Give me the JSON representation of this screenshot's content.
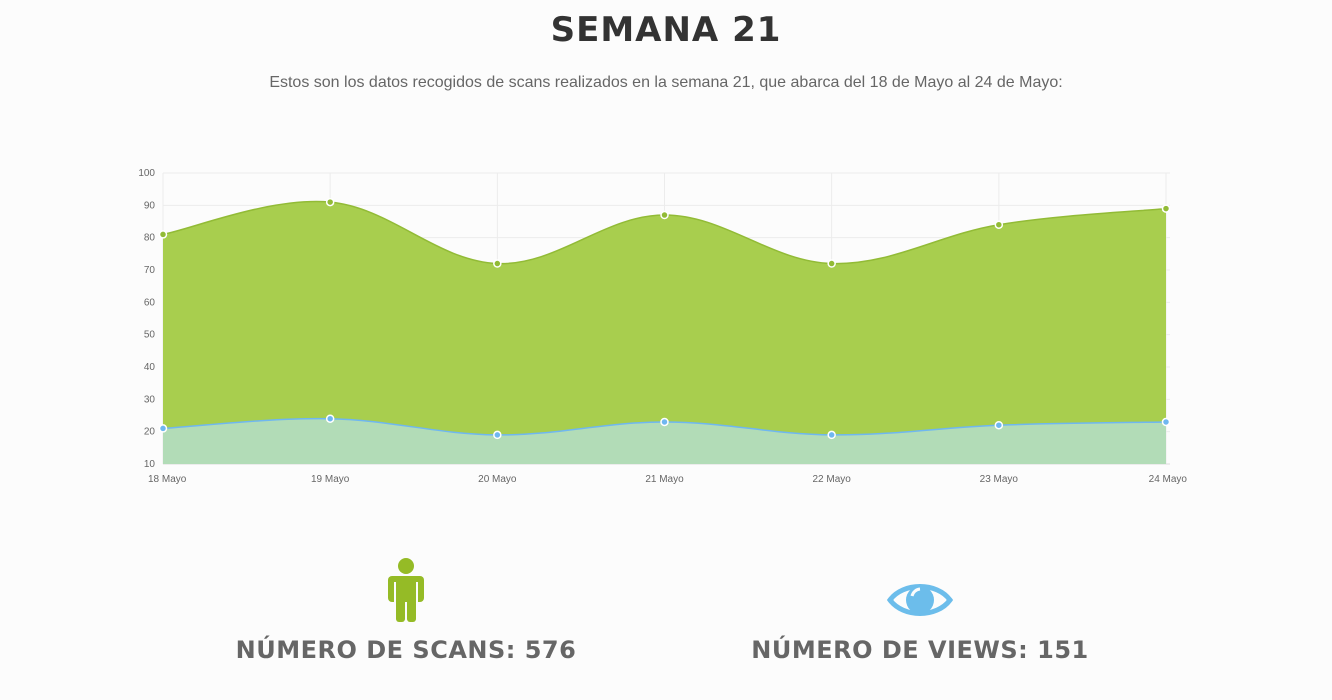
{
  "page": {
    "title": "SEMANA 21",
    "subtitle": "Estos son los datos recogidos de scans realizados en la semana 21, que abarca del 18 de Mayo al 24 de Mayo:"
  },
  "chart_data": {
    "type": "area",
    "title": "",
    "xlabel": "",
    "ylabel": "",
    "categories": [
      "18 Mayo",
      "19 Mayo",
      "20 Mayo",
      "21 Mayo",
      "22 Mayo",
      "23 Mayo",
      "24 Mayo"
    ],
    "ylim": [
      10,
      100
    ],
    "yticks": [
      10,
      20,
      30,
      40,
      50,
      60,
      70,
      80,
      90,
      100
    ],
    "grid": true,
    "series": [
      {
        "values": [
          81,
          91,
          72,
          87,
          72,
          84,
          89
        ],
        "fill": "#a8ce4e",
        "stroke": "#92bb36"
      },
      {
        "values": [
          21,
          24,
          19,
          23,
          19,
          22,
          23
        ],
        "fill": "#b2dcb7",
        "stroke": "#6fb7f0"
      }
    ]
  },
  "stats": {
    "scans": {
      "label": "NÚMERO DE SCANS: 576",
      "icon": "person-icon",
      "color": "#95bb26"
    },
    "views": {
      "label": "NÚMERO DE VIEWS: 151",
      "icon": "eye-icon",
      "color": "#6cbdeb"
    }
  }
}
